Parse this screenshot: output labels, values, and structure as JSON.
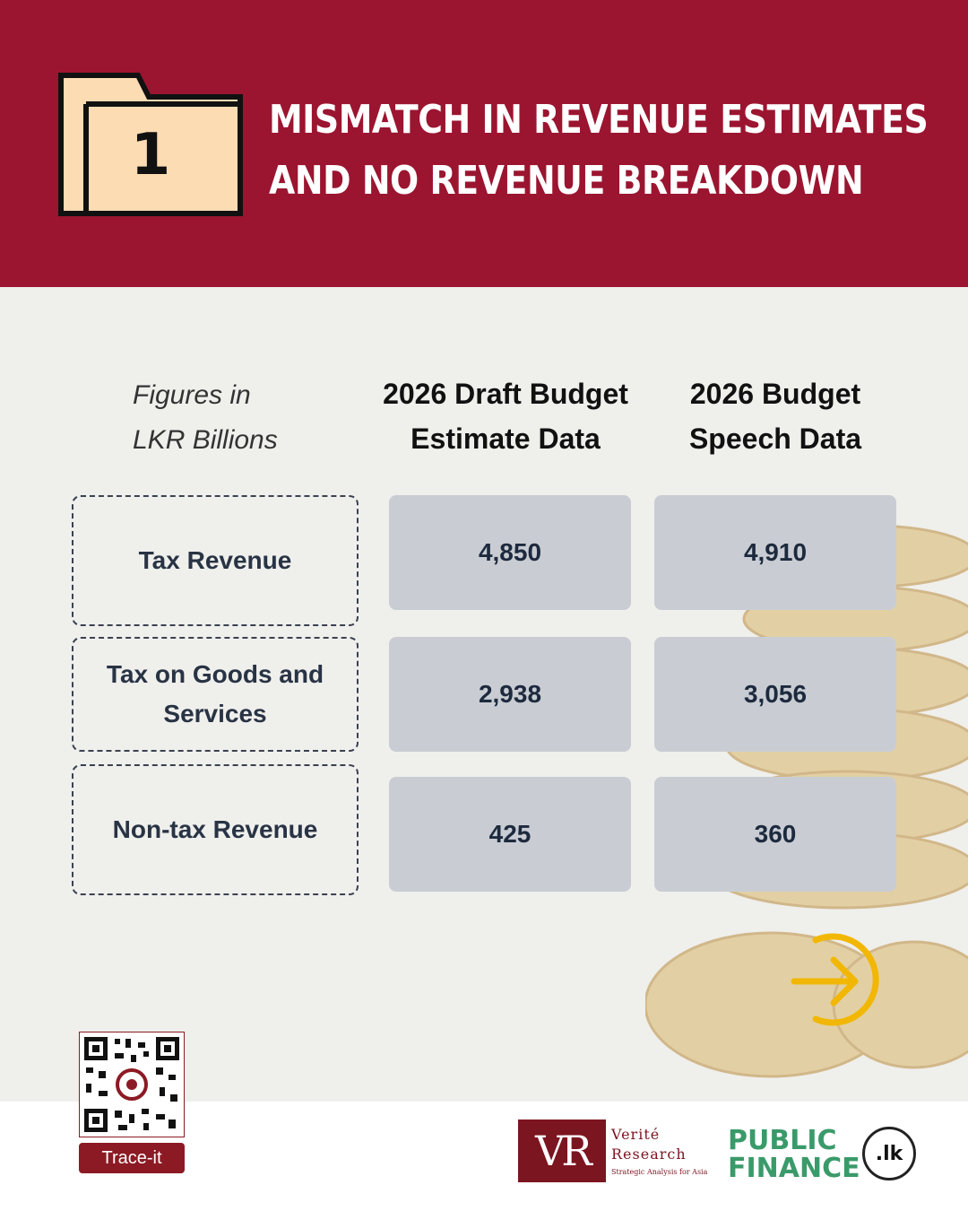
{
  "header": {
    "folder_number": "1",
    "title_line1": "MISMATCH IN REVENUE ESTIMATES",
    "title_line2": "AND NO REVENUE BREAKDOWN",
    "background_color": "#9b1530"
  },
  "table": {
    "units_line1": "Figures in",
    "units_line2": "LKR Billions",
    "columns": [
      {
        "line1": "2026 Draft Budget",
        "line2": "Estimate Data"
      },
      {
        "line1": "2026 Budget",
        "line2": "Speech Data"
      }
    ],
    "rows": [
      {
        "label_line1": "Tax Revenue",
        "label_line2": "",
        "draft": "4,850",
        "speech": "4,910"
      },
      {
        "label_line1": "Tax on Goods and",
        "label_line2": "Services",
        "draft": "2,938",
        "speech": "3,056"
      },
      {
        "label_line1": "Non-tax Revenue",
        "label_line2": "",
        "draft": "425",
        "speech": "360"
      }
    ]
  },
  "navigation": {
    "next_icon": "arrow-right-circle-icon",
    "accent_color": "#f2b705"
  },
  "footer": {
    "trace_label": "Trace-it",
    "verite_line1": "Verité",
    "verite_line2": "Research",
    "verite_tagline": "Strategic Analysis for Asia",
    "verite_initials": "VR",
    "pf_line1": "PUBLIC",
    "pf_line2": "FINANCE",
    "pf_badge": ".lk"
  }
}
